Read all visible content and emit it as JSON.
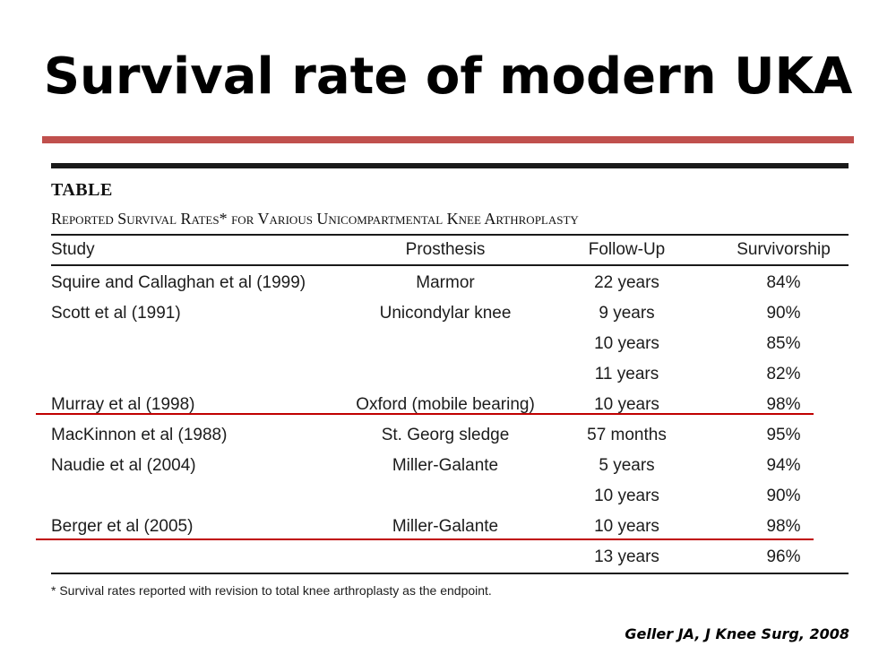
{
  "slide": {
    "title": "Survival rate of modern UKA",
    "citation": "Geller JA, J Knee Surg, 2008",
    "accent_color": "#c0504d",
    "highlight_color": "#c00000"
  },
  "table": {
    "label": "TABLE",
    "caption": "Reported Survival Rates* for Various Unicompartmental Knee Arthroplasty",
    "headers": {
      "study": "Study",
      "prosthesis": "Prosthesis",
      "follow_up": "Follow-Up",
      "survivorship": "Survivorship"
    },
    "rows": [
      {
        "study": "Squire and Callaghan et al (1999)",
        "prosthesis": "Marmor",
        "follow_up": "22 years",
        "survivorship": "84%"
      },
      {
        "study": "Scott et al (1991)",
        "prosthesis": "Unicondylar knee",
        "follow_up": "9 years",
        "survivorship": "90%"
      },
      {
        "study": "",
        "prosthesis": "",
        "follow_up": "10 years",
        "survivorship": "85%"
      },
      {
        "study": "",
        "prosthesis": "",
        "follow_up": "11 years",
        "survivorship": "82%"
      },
      {
        "study": "Murray et al (1998)",
        "prosthesis": "Oxford (mobile bearing)",
        "follow_up": "10 years",
        "survivorship": "98%"
      },
      {
        "study": "MacKinnon et al (1988)",
        "prosthesis": "St. Georg sledge",
        "follow_up": "57 months",
        "survivorship": "95%"
      },
      {
        "study": "Naudie et al (2004)",
        "prosthesis": "Miller-Galante",
        "follow_up": "5 years",
        "survivorship": "94%"
      },
      {
        "study": "",
        "prosthesis": "",
        "follow_up": "10 years",
        "survivorship": "90%"
      },
      {
        "study": "Berger et al (2005)",
        "prosthesis": "Miller-Galante",
        "follow_up": "10 years",
        "survivorship": "98%"
      },
      {
        "study": "",
        "prosthesis": "",
        "follow_up": "13 years",
        "survivorship": "96%"
      }
    ],
    "footnote": "* Survival rates reported with revision to total knee arthroplasty as the endpoint."
  }
}
